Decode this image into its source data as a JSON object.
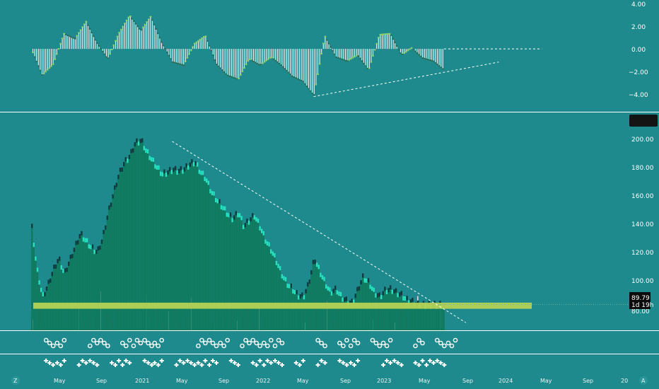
{
  "colors": {
    "background": "#1f8a8d",
    "bar_fill": "#0f7a5e",
    "candle_up": "#26e0c0",
    "candle_down": "#0f3a3e",
    "support_band": "#b4d255",
    "separator": "#ffffff",
    "osc_up_line": "#8cd46a",
    "price_badge_bg": "#0c0c0c"
  },
  "price_badge": {
    "value": "89.79",
    "countdown": "1d 19h"
  },
  "x_axis": {
    "labels": [
      "May",
      "Sep",
      "2021",
      "May",
      "Sep",
      "2022",
      "May",
      "Sep",
      "2023",
      "May",
      "Sep",
      "2024",
      "May",
      "Sep",
      "20"
    ],
    "left_icon": "Z",
    "right_icon": "A"
  },
  "chart_data": [
    {
      "type": "histogram",
      "panel": "oscillator",
      "y_ticks": [
        "4.00",
        "2.00",
        "0.00",
        "−2.00",
        "−4.00"
      ],
      "ylim": [
        -4.8,
        4.4
      ],
      "x_dates": [
        "2020-04",
        "2020-05",
        "2020-06",
        "2020-07",
        "2020-08",
        "2020-09",
        "2020-10",
        "2020-11",
        "2020-12",
        "2021-01",
        "2021-02",
        "2021-03",
        "2021-04",
        "2021-05",
        "2021-06",
        "2021-07",
        "2021-08",
        "2021-09",
        "2021-10",
        "2021-11",
        "2021-12",
        "2022-01",
        "2022-02",
        "2022-03",
        "2022-04",
        "2022-05",
        "2022-06",
        "2022-07",
        "2022-08",
        "2022-09",
        "2022-10",
        "2022-11",
        "2022-12",
        "2023-01",
        "2023-02",
        "2023-03",
        "2023-04",
        "2023-05",
        "2023-06"
      ],
      "values": [
        0.0,
        -2.6,
        -1.5,
        1.5,
        1.0,
        2.7,
        0.6,
        -1.0,
        1.5,
        3.3,
        1.8,
        3.2,
        0.6,
        -1.3,
        -1.6,
        0.5,
        1.3,
        -1.5,
        -2.6,
        -3.0,
        -1.0,
        -1.6,
        -0.8,
        -1.6,
        -2.7,
        -3.2,
        -4.6,
        1.3,
        -0.8,
        -1.2,
        -0.6,
        -2.1,
        1.4,
        1.5,
        -0.6,
        0.1,
        -0.9,
        -1.2,
        -2.1
      ],
      "trendlines": [
        {
          "style": "dashed",
          "from": [
            "2022-06",
            -4.7
          ],
          "to": [
            "2023-11",
            -1.3
          ]
        },
        {
          "style": "dashed",
          "from": [
            "2023-06",
            0.0
          ],
          "to": [
            "2024-03",
            0.0
          ]
        }
      ]
    },
    {
      "type": "candlestick",
      "panel": "price",
      "y_ticks": [
        "200.00",
        "180.00",
        "160.00",
        "140.00",
        "120.00",
        "100.00",
        "80.00"
      ],
      "ylim": [
        73,
        213
      ],
      "last_value": 89.79,
      "closes": [
        [
          "2020-04-01",
          140
        ],
        [
          "2020-04-15",
          113
        ],
        [
          "2020-05-01",
          95
        ],
        [
          "2020-05-15",
          102
        ],
        [
          "2020-06-01",
          113
        ],
        [
          "2020-06-15",
          120
        ],
        [
          "2020-07-01",
          110
        ],
        [
          "2020-07-15",
          118
        ],
        [
          "2020-08-01",
          128
        ],
        [
          "2020-08-15",
          136
        ],
        [
          "2020-09-01",
          131
        ],
        [
          "2020-09-15",
          127
        ],
        [
          "2020-10-01",
          124
        ],
        [
          "2020-10-15",
          132
        ],
        [
          "2020-11-01",
          150
        ],
        [
          "2020-11-15",
          162
        ],
        [
          "2020-12-01",
          175
        ],
        [
          "2020-12-15",
          182
        ],
        [
          "2021-01-01",
          187
        ],
        [
          "2021-01-15",
          195
        ],
        [
          "2021-02-01",
          197
        ],
        [
          "2021-02-15",
          190
        ],
        [
          "2021-03-01",
          185
        ],
        [
          "2021-03-15",
          180
        ],
        [
          "2021-04-01",
          175
        ],
        [
          "2021-04-15",
          176
        ],
        [
          "2021-05-01",
          178
        ],
        [
          "2021-05-15",
          177
        ],
        [
          "2021-06-01",
          178
        ],
        [
          "2021-06-15",
          181
        ],
        [
          "2021-07-01",
          183
        ],
        [
          "2021-07-15",
          177
        ],
        [
          "2021-08-01",
          172
        ],
        [
          "2021-08-15",
          164
        ],
        [
          "2021-09-01",
          158
        ],
        [
          "2021-09-15",
          154
        ],
        [
          "2021-10-01",
          149
        ],
        [
          "2021-10-15",
          146
        ],
        [
          "2021-11-01",
          150
        ],
        [
          "2021-11-15",
          141
        ],
        [
          "2021-12-01",
          145
        ],
        [
          "2021-12-15",
          148
        ],
        [
          "2022-01-01",
          140
        ],
        [
          "2022-01-15",
          132
        ],
        [
          "2022-02-01",
          125
        ],
        [
          "2022-02-15",
          118
        ],
        [
          "2022-03-01",
          110
        ],
        [
          "2022-03-15",
          104
        ],
        [
          "2022-04-01",
          100
        ],
        [
          "2022-04-15",
          96
        ],
        [
          "2022-05-01",
          95
        ],
        [
          "2022-05-15",
          103
        ],
        [
          "2022-06-01",
          120
        ],
        [
          "2022-06-15",
          112
        ],
        [
          "2022-07-01",
          104
        ],
        [
          "2022-07-15",
          98
        ],
        [
          "2022-08-01",
          100
        ],
        [
          "2022-08-15",
          95
        ],
        [
          "2022-09-01",
          92
        ],
        [
          "2022-09-15",
          91
        ],
        [
          "2022-10-01",
          100
        ],
        [
          "2022-10-15",
          108
        ],
        [
          "2022-11-01",
          104
        ],
        [
          "2022-11-15",
          98
        ],
        [
          "2022-12-01",
          95
        ],
        [
          "2022-12-15",
          99
        ],
        [
          "2023-01-01",
          100
        ],
        [
          "2023-01-15",
          98
        ],
        [
          "2023-02-01",
          96
        ],
        [
          "2023-02-15",
          93
        ],
        [
          "2023-03-01",
          92
        ],
        [
          "2023-03-15",
          90
        ],
        [
          "2023-04-01",
          89.79
        ]
      ],
      "support_band": [
        87,
        91
      ],
      "trendline": {
        "style": "dashed",
        "from": [
          "2021-05",
          196
        ],
        "to": [
          "2023-08",
          78
        ]
      }
    },
    {
      "type": "bar",
      "panel": "volume",
      "note": "volume bars overlaid at the bottom of the price panel",
      "values": [
        14,
        30,
        6,
        22,
        10,
        40,
        8,
        16,
        34,
        12,
        26,
        18,
        50,
        20,
        14,
        38,
        9,
        28,
        22,
        12,
        44,
        16,
        30,
        10,
        24,
        36,
        8,
        18,
        42,
        14,
        20,
        32,
        10,
        26,
        16,
        48,
        12,
        22,
        34,
        8,
        28,
        18,
        40,
        14,
        30,
        20,
        12,
        36,
        10,
        24,
        46,
        16,
        38,
        12,
        28,
        20,
        34,
        8,
        22,
        30,
        14,
        42,
        18,
        26,
        10,
        32,
        16,
        24,
        44,
        12,
        36,
        20,
        30
      ]
    },
    {
      "type": "scatter",
      "panel": "markers",
      "series": [
        {
          "name": "circle",
          "y_level": "upper",
          "x_dates": [
            "2020-05",
            "2020-06",
            "2020-09",
            "2020-10",
            "2020-12",
            "2021-01",
            "2021-02",
            "2021-03",
            "2021-07",
            "2021-08",
            "2021-09",
            "2021-11",
            "2021-12",
            "2022-01",
            "2022-02",
            "2022-06",
            "2022-08",
            "2022-09",
            "2022-11",
            "2022-12",
            "2023-03",
            "2023-05",
            "2023-06"
          ]
        },
        {
          "name": "cross",
          "y_level": "lower",
          "x_dates": [
            "2020-05",
            "2020-06",
            "2020-08",
            "2020-09",
            "2020-11",
            "2020-12",
            "2021-02",
            "2021-03",
            "2021-05",
            "2021-06",
            "2021-07",
            "2021-08",
            "2021-10",
            "2021-12",
            "2022-01",
            "2022-02",
            "2022-04",
            "2022-06",
            "2022-08",
            "2022-09",
            "2022-12",
            "2023-01",
            "2023-03",
            "2023-04",
            "2023-05"
          ]
        }
      ]
    }
  ]
}
